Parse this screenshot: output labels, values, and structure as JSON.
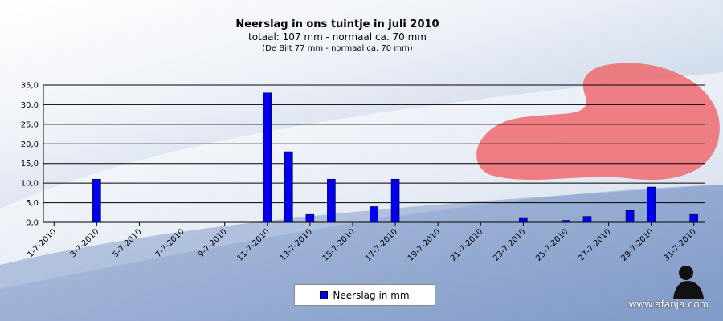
{
  "title": "Neerslag  in  ons  tuintje  in  juli  2010",
  "subtitle": "totaal: 107 mm  - normaal  ca. 70 mm",
  "subtitle2": "(De Bilt 77 mm - normaal ca. 70 mm)",
  "watermark": "www.afanja.com",
  "colors": {
    "bar": "#0000ee",
    "bar_edge": "#000033",
    "grid": "#000000"
  },
  "chart_data": {
    "type": "bar",
    "categories": [
      "1-7-2010",
      "2-7-2010",
      "3-7-2010",
      "4-7-2010",
      "5-7-2010",
      "6-7-2010",
      "7-7-2010",
      "8-7-2010",
      "9-7-2010",
      "10-7-2010",
      "11-7-2010",
      "12-7-2010",
      "13-7-2010",
      "14-7-2010",
      "15-7-2010",
      "16-7-2010",
      "17-7-2010",
      "18-7-2010",
      "19-7-2010",
      "20-7-2010",
      "21-7-2010",
      "22-7-2010",
      "23-7-2010",
      "24-7-2010",
      "25-7-2010",
      "26-7-2010",
      "27-7-2010",
      "28-7-2010",
      "29-7-2010",
      "30-7-2010",
      "31-7-2010"
    ],
    "tick_labels": [
      "1-7-2010",
      "3-7-2010",
      "5-7-2010",
      "7-7-2010",
      "9-7-2010",
      "11-7-2010",
      "13-7-2010",
      "15-7-2010",
      "17-7-2010",
      "19-7-2010",
      "21-7-2010",
      "23-7-2010",
      "25-7-2010",
      "27-7-2010",
      "29-7-2010",
      "31-7-2010"
    ],
    "series": [
      {
        "name": "Neerslag in mm",
        "values": [
          0,
          0,
          11,
          0,
          0,
          0,
          0,
          0,
          0,
          0,
          33,
          18,
          2,
          11,
          0,
          4,
          11,
          0,
          0,
          0,
          0,
          0,
          1,
          0,
          0.5,
          1.5,
          0,
          3,
          9,
          0,
          2
        ]
      }
    ],
    "y_ticks": [
      "0,0",
      "5,0",
      "10,0",
      "15,0",
      "20,0",
      "25,0",
      "30,0",
      "35,0"
    ],
    "ylim": [
      0,
      35
    ],
    "grid": true,
    "legend_position": "bottom"
  }
}
